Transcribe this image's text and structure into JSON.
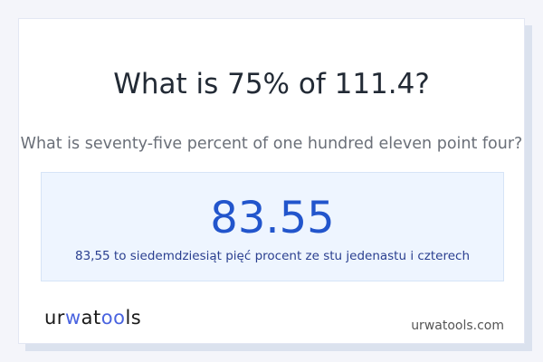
{
  "title": "What is 75% of 111.4?",
  "subtitle": "What is seventy-five percent of one hundred eleven point four?",
  "answer": "83.55",
  "answer_words": "83,55 to siedemdziesiąt pięć procent ze stu jedenastu i czterech",
  "logo": {
    "part1": "ur",
    "part2": "w",
    "part3": "at",
    "part4": "oo",
    "part5": "ls"
  },
  "site": "urwatools.com",
  "colors": {
    "accent": "#2255cc",
    "logo_accent": "#4a64e0"
  }
}
